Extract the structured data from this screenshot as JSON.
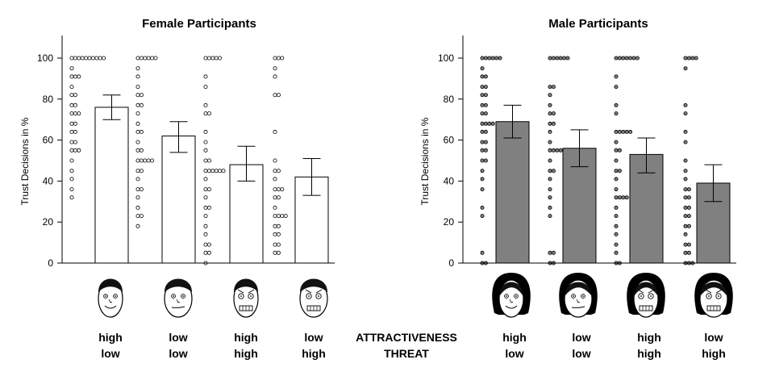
{
  "chart_data": [
    {
      "type": "bar",
      "title": "Female Participants",
      "ylabel": "Trust Decisions in %",
      "ylim": [
        0,
        100
      ],
      "yticks": [
        0,
        20,
        40,
        60,
        80,
        100
      ],
      "bar_color": "#ffffff",
      "dot_fill": "#ffffff",
      "face_type": "male",
      "categories": [
        {
          "attractiveness": "high",
          "threat": "low"
        },
        {
          "attractiveness": "low",
          "threat": "low"
        },
        {
          "attractiveness": "high",
          "threat": "high"
        },
        {
          "attractiveness": "low",
          "threat": "high"
        }
      ],
      "values": [
        76,
        62,
        48,
        42
      ],
      "error_low": [
        70,
        54,
        40,
        33
      ],
      "error_high": [
        82,
        69,
        57,
        51
      ],
      "points": [
        [
          100,
          100,
          100,
          100,
          100,
          100,
          100,
          100,
          100,
          100,
          95,
          91,
          91,
          91,
          86,
          82,
          82,
          77,
          77,
          73,
          73,
          73,
          68,
          68,
          64,
          64,
          59,
          59,
          55,
          55,
          55,
          50,
          45,
          41,
          36,
          32
        ],
        [
          100,
          100,
          100,
          100,
          100,
          100,
          95,
          91,
          86,
          82,
          82,
          77,
          77,
          73,
          68,
          64,
          64,
          59,
          55,
          55,
          50,
          50,
          50,
          50,
          50,
          45,
          45,
          41,
          36,
          36,
          32,
          27,
          23,
          23,
          18
        ],
        [
          100,
          100,
          100,
          100,
          100,
          91,
          86,
          77,
          73,
          73,
          64,
          59,
          55,
          50,
          50,
          45,
          45,
          45,
          45,
          45,
          45,
          41,
          36,
          36,
          32,
          27,
          27,
          23,
          18,
          14,
          9,
          9,
          5,
          5,
          0
        ],
        [
          100,
          100,
          100,
          95,
          91,
          82,
          82,
          64,
          50,
          45,
          45,
          41,
          36,
          36,
          36,
          32,
          32,
          27,
          23,
          23,
          23,
          23,
          18,
          18,
          14,
          14,
          9,
          9,
          5,
          5
        ]
      ]
    },
    {
      "type": "bar",
      "title": "Male Participants",
      "ylabel": "Trust Decisions in %",
      "ylim": [
        0,
        100
      ],
      "yticks": [
        0,
        20,
        40,
        60,
        80,
        100
      ],
      "bar_color": "#808080",
      "dot_fill": "#808080",
      "face_type": "female",
      "categories": [
        {
          "attractiveness": "high",
          "threat": "low"
        },
        {
          "attractiveness": "low",
          "threat": "low"
        },
        {
          "attractiveness": "high",
          "threat": "high"
        },
        {
          "attractiveness": "low",
          "threat": "high"
        }
      ],
      "values": [
        69,
        56,
        53,
        39
      ],
      "error_low": [
        61,
        47,
        44,
        30
      ],
      "error_high": [
        77,
        65,
        61,
        48
      ],
      "points": [
        [
          100,
          100,
          100,
          100,
          100,
          100,
          95,
          91,
          91,
          86,
          86,
          82,
          82,
          77,
          77,
          73,
          73,
          68,
          68,
          68,
          68,
          64,
          64,
          59,
          59,
          55,
          55,
          50,
          50,
          45,
          41,
          36,
          27,
          23,
          5,
          0,
          0
        ],
        [
          100,
          100,
          100,
          100,
          100,
          100,
          86,
          86,
          82,
          77,
          73,
          73,
          68,
          68,
          64,
          59,
          55,
          55,
          55,
          55,
          50,
          45,
          45,
          41,
          36,
          32,
          27,
          23,
          5,
          5,
          0,
          0
        ],
        [
          100,
          100,
          100,
          100,
          100,
          100,
          100,
          91,
          86,
          77,
          73,
          64,
          64,
          64,
          64,
          64,
          59,
          55,
          55,
          50,
          45,
          45,
          41,
          36,
          32,
          32,
          32,
          32,
          27,
          23,
          18,
          14,
          9,
          5,
          0,
          0
        ],
        [
          100,
          100,
          100,
          100,
          95,
          77,
          73,
          64,
          59,
          50,
          45,
          41,
          36,
          36,
          32,
          32,
          27,
          27,
          23,
          23,
          18,
          18,
          14,
          9,
          9,
          5,
          5,
          0,
          0,
          0
        ]
      ]
    }
  ],
  "center_labels": {
    "line1": "ATTRACTIVENESS",
    "line2": "THREAT"
  }
}
